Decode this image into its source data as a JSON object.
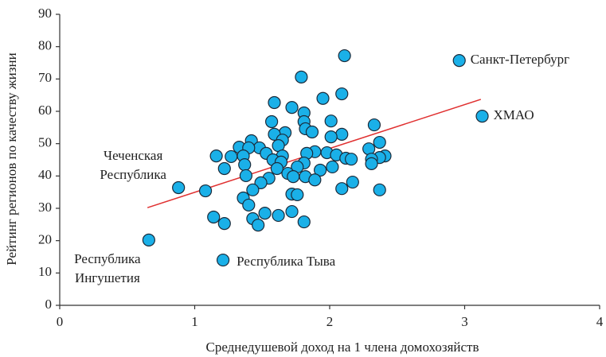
{
  "chart_data": {
    "type": "scatter",
    "x_label": "Среднедушевой доход на 1 члена домохозяйств",
    "y_label": "Рейтинг регионов по качеству жизни",
    "xlim": [
      0,
      4
    ],
    "xticks": [
      0,
      1,
      2,
      3,
      4
    ],
    "ylim": [
      0,
      90
    ],
    "yticks": [
      0,
      10,
      20,
      30,
      40,
      50,
      60,
      70,
      80,
      90
    ],
    "color": "#1ab0e8",
    "series": [
      {
        "x": [
          2.11,
          1.79,
          2.09,
          1.95,
          1.59,
          1.72,
          1.81,
          1.57,
          1.81,
          2.01,
          1.82,
          1.87,
          1.67,
          2.09,
          1.59,
          2.01,
          2.33,
          1.42,
          1.65,
          1.62,
          2.37,
          1.33,
          1.48,
          1.4,
          2.29,
          1.89,
          1.83,
          1.98,
          2.05,
          1.53,
          1.16,
          1.27,
          1.36,
          1.65,
          2.41,
          2.37,
          2.12,
          2.16,
          2.31,
          1.58,
          1.64,
          2.31,
          1.81,
          1.37,
          1.76,
          2.02,
          1.61,
          1.22,
          1.93,
          1.69,
          1.38,
          1.73,
          1.82,
          1.55,
          1.89,
          1.49,
          2.17,
          2.09,
          1.08,
          1.43,
          2.37,
          1.72,
          1.76,
          1.36,
          1.4,
          1.72,
          1.52,
          1.14,
          1.62,
          1.43,
          1.22,
          1.81,
          1.47
        ],
        "values": [
          77.2,
          70.6,
          65.4,
          64.0,
          62.7,
          61.2,
          59.5,
          56.8,
          56.8,
          57.0,
          54.6,
          53.6,
          53.4,
          52.9,
          52.9,
          52.1,
          55.8,
          50.9,
          51.1,
          49.4,
          50.4,
          48.9,
          48.7,
          48.7,
          48.4,
          47.5,
          47.0,
          47.2,
          46.5,
          47.0,
          46.2,
          46.0,
          46.2,
          46.2,
          46.2,
          45.7,
          45.5,
          45.2,
          45.2,
          45.0,
          44.3,
          43.8,
          44.0,
          43.5,
          42.8,
          42.8,
          42.3,
          42.3,
          41.8,
          40.8,
          40.1,
          39.8,
          39.8,
          39.3,
          38.8,
          37.9,
          38.1,
          36.1,
          35.4,
          35.7,
          35.7,
          34.4,
          34.2,
          33.2,
          31.0,
          29.0,
          28.5,
          27.3,
          27.8,
          26.8,
          25.3,
          25.8,
          24.8
        ]
      }
    ],
    "annotations": [
      {
        "text": [
          "Санкт-Петербург"
        ],
        "x": 2.96,
        "y": 75.7
      },
      {
        "text": [
          "ХМАО"
        ],
        "x": 3.13,
        "y": 58.5
      },
      {
        "text": [
          "Чеченская",
          "Республика"
        ],
        "x": 0.88,
        "y": 36.4
      },
      {
        "text": [
          "Республика",
          "Ингушетия"
        ],
        "x": 0.66,
        "y": 20.2
      },
      {
        "text": [
          "Республика Тыва"
        ],
        "x": 1.21,
        "y": 14.0
      }
    ],
    "trend_line": {
      "x": [
        0.65,
        3.12
      ],
      "y": [
        30.2,
        63.7
      ],
      "color": "#e03030"
    }
  }
}
